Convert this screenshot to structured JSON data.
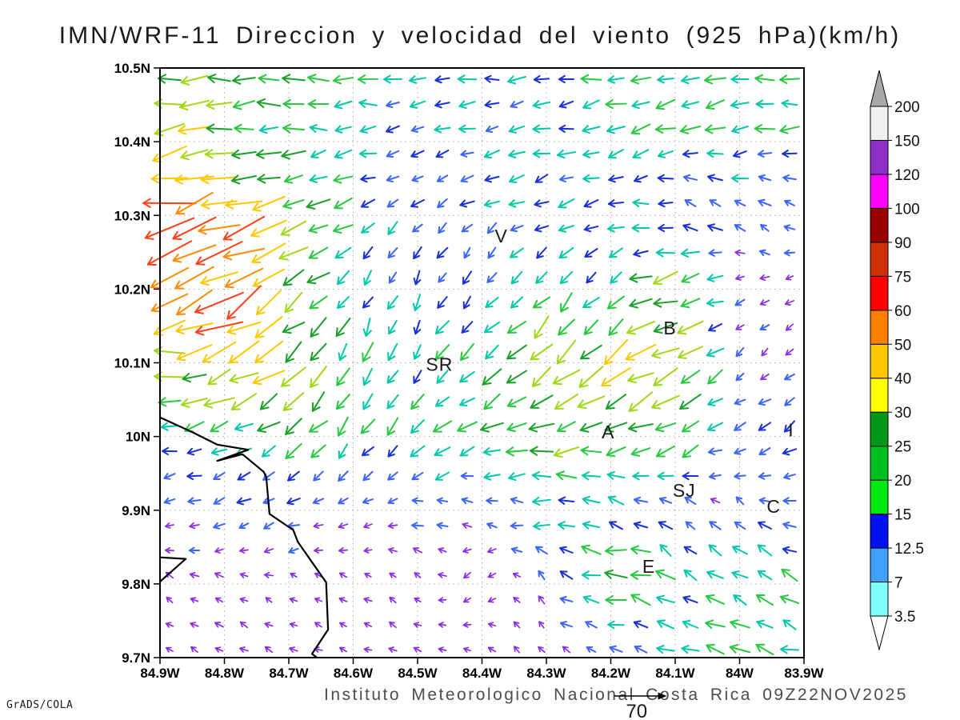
{
  "title": "IMN/WRF-11 Direccion y velocidad del viento (925 hPa)(km/h)",
  "caption": "Instituto Meteorologico Nacional Costa Rica 09Z22NOV2025",
  "credit": "GrADS/COLA",
  "reference_arrow": {
    "label": "70",
    "speed": 70
  },
  "axes": {
    "lon_min": -84.9,
    "lon_max": -83.9,
    "lat_min": 9.7,
    "lat_max": 10.5,
    "x_tick_lons": [
      -84.9,
      -84.8,
      -84.7,
      -84.6,
      -84.5,
      -84.4,
      -84.3,
      -84.2,
      -84.1,
      -84.0,
      -83.9
    ],
    "x_tick_labels": [
      "84.9W",
      "84.8W",
      "84.7W",
      "84.6W",
      "84.5W",
      "84.4W",
      "84.3W",
      "84.2W",
      "84.1W",
      "84W",
      "83.9W"
    ],
    "y_tick_lats": [
      10.5,
      10.4,
      10.3,
      10.2,
      10.1,
      10.0,
      9.9,
      9.8,
      9.7
    ],
    "y_tick_labels": [
      "10.5N",
      "10.4N",
      "10.3N",
      "10.2N",
      "10.1N",
      "10N",
      "9.9N",
      "9.8N",
      "9.7N"
    ],
    "grid_color": "#aaaaaa"
  },
  "stations": [
    {
      "label": "V",
      "lon": -84.37,
      "lat": 10.272
    },
    {
      "label": "B",
      "lon": -84.108,
      "lat": 10.147
    },
    {
      "label": "SR",
      "lon": -84.466,
      "lat": 10.098
    },
    {
      "label": "A",
      "lon": -84.204,
      "lat": 10.006
    },
    {
      "label": "SJ",
      "lon": -84.086,
      "lat": 9.927
    },
    {
      "label": "C",
      "lon": -83.947,
      "lat": 9.905
    },
    {
      "label": "E",
      "lon": -84.141,
      "lat": 9.824
    },
    {
      "label": "I",
      "lon": -83.92,
      "lat": 10.009
    }
  ],
  "coastline": {
    "segments": [
      [
        [
          -84.9,
          10.026
        ],
        [
          -84.85,
          10.006
        ],
        [
          -84.811,
          9.989
        ],
        [
          -84.763,
          9.982
        ],
        [
          -84.811,
          9.967
        ],
        [
          -84.772,
          9.976
        ],
        [
          -84.739,
          9.952
        ],
        [
          -84.735,
          9.945
        ],
        [
          -84.73,
          9.895
        ],
        [
          -84.693,
          9.873
        ],
        [
          -84.686,
          9.857
        ],
        [
          -84.642,
          9.802
        ],
        [
          -84.639,
          9.738
        ],
        [
          -84.664,
          9.705
        ],
        [
          -84.656,
          9.7
        ]
      ],
      [
        [
          -84.9,
          9.836
        ],
        [
          -84.86,
          9.834
        ],
        [
          -84.9,
          9.803
        ]
      ]
    ]
  },
  "colorbar": {
    "levels": [
      3.5,
      7,
      12.5,
      15,
      20,
      25,
      30,
      40,
      50,
      60,
      75,
      90,
      100,
      120,
      150,
      200
    ],
    "band_colors": [
      "#80FFFF",
      "#3FA0FF",
      "#0010F0",
      "#00E810",
      "#00C020",
      "#009818",
      "#FFFF00",
      "#FFC800",
      "#FF8000",
      "#FF0000",
      "#D03008",
      "#980000",
      "#FF00FF",
      "#8E30C8",
      "#F0F0F0"
    ],
    "below_color": "#FFFFFF",
    "above_color": "#A8A8A8"
  },
  "chart_data": {
    "type": "quiver",
    "units": "km/h",
    "level": "925 hPa",
    "reference_speed": 70,
    "grid_lons": [
      -84.9,
      -84.8,
      -84.7,
      -84.6,
      -84.5,
      -84.4,
      -84.3,
      -84.2,
      -84.1,
      -84.0,
      -83.9
    ],
    "grid_lats": [
      10.5,
      10.4,
      10.3,
      10.2,
      10.1,
      10.0,
      9.9,
      9.8,
      9.7
    ],
    "u": [
      [
        -30,
        -22,
        -20,
        -18,
        -16,
        -16,
        -17,
        -18,
        -19,
        -20,
        -20
      ],
      [
        -45,
        -28,
        -22,
        -15,
        -10,
        -13,
        -15,
        -17,
        -18,
        -17,
        -16
      ],
      [
        -60,
        -52,
        -28,
        -14,
        -8,
        -10,
        -12,
        -14,
        -12,
        -9,
        -7
      ],
      [
        -48,
        -50,
        -32,
        -8,
        -5,
        -6,
        -12,
        -8,
        -34,
        -5,
        -4
      ],
      [
        -36,
        -42,
        -24,
        -10,
        -9,
        -16,
        -25,
        -30,
        -30,
        -7,
        -5
      ],
      [
        -14,
        -16,
        -19,
        -11,
        -13,
        -21,
        -26,
        -26,
        -22,
        -9,
        -10
      ],
      [
        -6,
        -9,
        -9,
        -5,
        -9,
        -5,
        -18,
        -13,
        -5,
        -6,
        -13
      ],
      [
        -4,
        -4,
        -3,
        -3,
        -3,
        -4,
        -3,
        -28,
        -16,
        -15,
        -15
      ],
      [
        -4,
        -5,
        -4,
        -4,
        -4,
        -3,
        -4,
        -8,
        -14,
        -18,
        -21
      ]
    ],
    "v": [
      [
        -4,
        -2,
        0,
        1,
        1,
        0,
        -2,
        -3,
        -3,
        -2,
        -2
      ],
      [
        -8,
        -4,
        -2,
        -2,
        -3,
        -3,
        -4,
        -4,
        -4,
        -3,
        -2
      ],
      [
        -14,
        -18,
        -10,
        -8,
        -8,
        -6,
        -6,
        -5,
        5,
        6,
        4
      ],
      [
        -22,
        -28,
        -22,
        -14,
        -12,
        -10,
        -14,
        -10,
        -8,
        -3,
        -3
      ],
      [
        4,
        -18,
        -22,
        -20,
        -16,
        -16,
        -20,
        -24,
        -16,
        -5,
        -4
      ],
      [
        0,
        -8,
        -12,
        -16,
        -11,
        -6,
        -5,
        -6,
        -14,
        -5,
        -8
      ],
      [
        -2,
        -3,
        -4,
        -3,
        2,
        2,
        0,
        5,
        8,
        6,
        3
      ],
      [
        3,
        2,
        2,
        2,
        2,
        -4,
        6,
        2,
        10,
        9,
        9
      ],
      [
        2,
        2,
        2,
        1,
        2,
        2,
        3,
        4,
        6,
        6,
        5
      ]
    ],
    "arrow_color_scale": [
      {
        "max": 7,
        "color": "#8B2BE8"
      },
      {
        "max": 12.5,
        "color": "#3C64FF"
      },
      {
        "max": 15,
        "color": "#1830D8"
      },
      {
        "max": 20,
        "color": "#00C8A8"
      },
      {
        "max": 25,
        "color": "#28C840"
      },
      {
        "max": 30,
        "color": "#18A028"
      },
      {
        "max": 40,
        "color": "#A0D818"
      },
      {
        "max": 50,
        "color": "#FFC800"
      },
      {
        "max": 60,
        "color": "#FF8C00"
      },
      {
        "max": 75,
        "color": "#FF4018"
      },
      {
        "max": 90,
        "color": "#FF2090"
      },
      {
        "max": 100,
        "color": "#B80000"
      },
      {
        "max": 120,
        "color": "#FF00FF"
      },
      {
        "max": 150,
        "color": "#9933CC"
      },
      {
        "max": 9999,
        "color": "#EEEEEE"
      }
    ]
  }
}
